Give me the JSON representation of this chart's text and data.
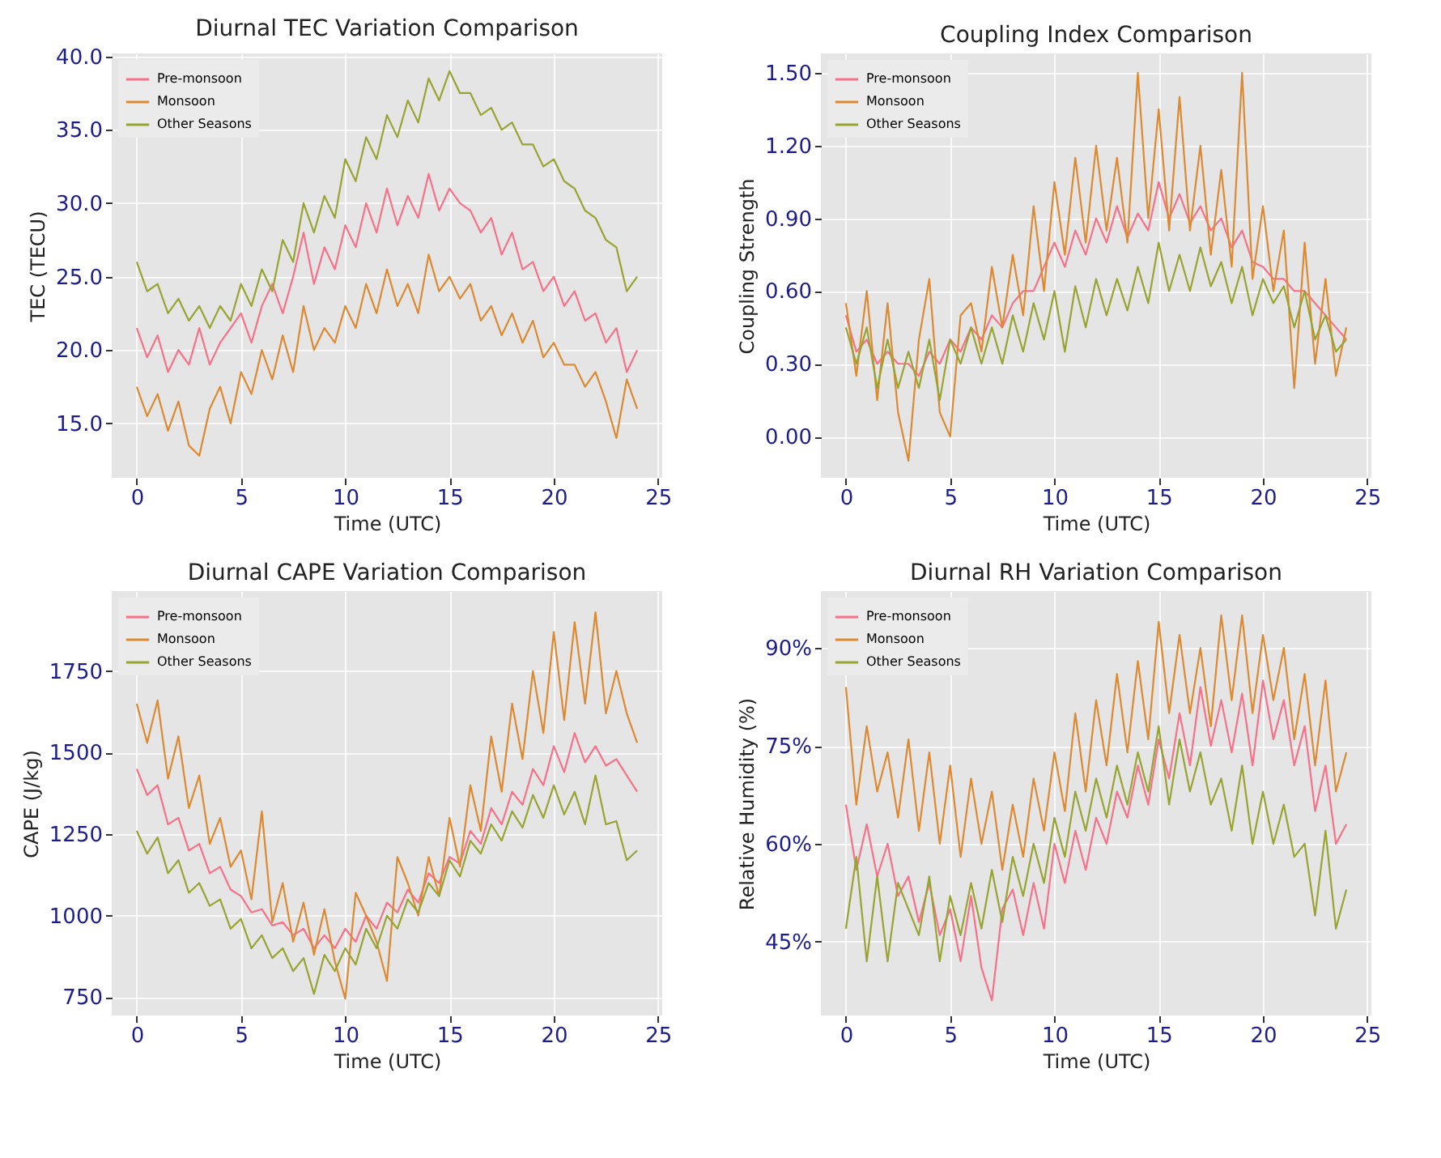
{
  "chart_data": [
    {
      "type": "line",
      "title": "Diurnal TEC Variation Comparison",
      "xlabel": "Time (UTC)",
      "ylabel": "TEC (TECU)",
      "xlim": [
        -1.2,
        25.2
      ],
      "xticks": [
        0,
        5,
        10,
        15,
        20,
        25
      ],
      "ylim": [
        11.3,
        40.2
      ],
      "yticks": [
        {
          "value": 15,
          "label": "15.0"
        },
        {
          "value": 20,
          "label": "20.0"
        },
        {
          "value": 25,
          "label": "25.0"
        },
        {
          "value": 30,
          "label": "30.0"
        },
        {
          "value": 35,
          "label": "35.0"
        },
        {
          "value": 40,
          "label": "40.0"
        }
      ],
      "grid": true,
      "legend": "top left",
      "x": [
        0,
        0.5,
        1,
        1.5,
        2,
        2.5,
        3,
        3.5,
        4,
        4.5,
        5,
        5.5,
        6,
        6.5,
        7,
        7.5,
        8,
        8.5,
        9,
        9.5,
        10,
        10.5,
        11,
        11.5,
        12,
        12.5,
        13,
        13.5,
        14,
        14.5,
        15,
        15.5,
        16,
        16.5,
        17,
        17.5,
        18,
        18.5,
        19,
        19.5,
        20,
        20.5,
        21,
        21.5,
        22,
        22.5,
        23,
        23.5,
        24
      ],
      "series": [
        {
          "name": "Pre-monsoon",
          "color": "#f77189",
          "values": [
            21.5,
            19.5,
            21,
            18.5,
            20,
            19,
            21.5,
            19,
            20.5,
            21.5,
            22.5,
            20.5,
            23,
            24.5,
            22.5,
            25,
            28,
            24.5,
            27,
            25.5,
            28.5,
            27,
            30,
            28,
            31,
            28.5,
            30.5,
            29,
            32,
            29.5,
            31,
            30,
            29.5,
            28,
            29,
            26.5,
            28,
            25.5,
            26,
            24,
            25,
            23,
            24,
            22,
            22.5,
            20.5,
            21.5,
            18.5,
            20
          ]
        },
        {
          "name": "Monsoon",
          "color": "#dc8932",
          "values": [
            17.5,
            15.5,
            17,
            14.5,
            16.5,
            13.5,
            12.8,
            16,
            17.5,
            15,
            18.5,
            17,
            20,
            18,
            21,
            18.5,
            23,
            20,
            21.5,
            20.5,
            23,
            21.5,
            24.5,
            22.5,
            25.5,
            23,
            24.5,
            22.5,
            26.5,
            24,
            25,
            23.5,
            24.5,
            22,
            23,
            21,
            22.5,
            20.5,
            22,
            19.5,
            20.5,
            19,
            19,
            17.5,
            18.5,
            16.5,
            14,
            18,
            16
          ]
        },
        {
          "name": "Other Seasons",
          "color": "#97a431",
          "values": [
            26,
            24,
            24.5,
            22.5,
            23.5,
            22,
            23,
            21.5,
            23,
            22,
            24.5,
            23,
            25.5,
            24,
            27.5,
            26,
            30,
            28,
            30.5,
            29,
            33,
            31.5,
            34.5,
            33,
            36,
            34.5,
            37,
            35.5,
            38.5,
            37,
            39,
            37.5,
            37.5,
            36,
            36.5,
            35,
            35.5,
            34,
            34,
            32.5,
            33,
            31.5,
            31,
            29.5,
            29,
            27.5,
            27,
            24,
            25
          ]
        }
      ]
    },
    {
      "type": "line",
      "title": "Coupling Index Comparison",
      "xlabel": "Time (UTC)",
      "ylabel": "Coupling Strength",
      "xlim": [
        -1.2,
        25.2
      ],
      "xticks": [
        0,
        5,
        10,
        15,
        20,
        25
      ],
      "ylim": [
        -0.17,
        1.58
      ],
      "yticks": [
        {
          "value": 0,
          "label": "0.00"
        },
        {
          "value": 0.3,
          "label": "0.30"
        },
        {
          "value": 0.6,
          "label": "0.60"
        },
        {
          "value": 0.9,
          "label": "0.90"
        },
        {
          "value": 1.2,
          "label": "1.20"
        },
        {
          "value": 1.5,
          "label": "1.50"
        }
      ],
      "grid": true,
      "legend": "top left",
      "x": [
        0,
        0.5,
        1,
        1.5,
        2,
        2.5,
        3,
        3.5,
        4,
        4.5,
        5,
        5.5,
        6,
        6.5,
        7,
        7.5,
        8,
        8.5,
        9,
        9.5,
        10,
        10.5,
        11,
        11.5,
        12,
        12.5,
        13,
        13.5,
        14,
        14.5,
        15,
        15.5,
        16,
        16.5,
        17,
        17.5,
        18,
        18.5,
        19,
        19.5,
        20,
        20.5,
        21,
        21.5,
        22,
        22.5,
        23,
        23.5,
        24
      ],
      "series": [
        {
          "name": "Pre-monsoon",
          "color": "#f77189",
          "values": [
            0.5,
            0.35,
            0.4,
            0.3,
            0.35,
            0.3,
            0.3,
            0.25,
            0.35,
            0.3,
            0.4,
            0.35,
            0.45,
            0.4,
            0.5,
            0.45,
            0.55,
            0.6,
            0.6,
            0.7,
            0.8,
            0.7,
            0.85,
            0.75,
            0.9,
            0.8,
            0.95,
            0.82,
            0.92,
            0.85,
            1.05,
            0.9,
            1.0,
            0.88,
            0.95,
            0.85,
            0.9,
            0.78,
            0.85,
            0.72,
            0.7,
            0.65,
            0.65,
            0.6,
            0.6,
            0.55,
            0.5,
            0.45,
            0.4
          ]
        },
        {
          "name": "Monsoon",
          "color": "#dc8932",
          "values": [
            0.55,
            0.25,
            0.6,
            0.15,
            0.55,
            0.1,
            -0.1,
            0.4,
            0.65,
            0.1,
            0.0,
            0.5,
            0.55,
            0.35,
            0.7,
            0.45,
            0.75,
            0.5,
            0.95,
            0.6,
            1.05,
            0.75,
            1.15,
            0.8,
            1.2,
            0.85,
            1.15,
            0.8,
            1.5,
            0.9,
            1.35,
            0.85,
            1.4,
            0.85,
            1.2,
            0.75,
            1.1,
            0.7,
            1.5,
            0.65,
            0.95,
            0.6,
            0.85,
            0.2,
            0.8,
            0.3,
            0.65,
            0.25,
            0.45
          ]
        },
        {
          "name": "Other Seasons",
          "color": "#97a431",
          "values": [
            0.45,
            0.3,
            0.45,
            0.2,
            0.4,
            0.2,
            0.35,
            0.2,
            0.4,
            0.15,
            0.4,
            0.3,
            0.45,
            0.3,
            0.45,
            0.3,
            0.5,
            0.35,
            0.55,
            0.4,
            0.6,
            0.35,
            0.62,
            0.45,
            0.65,
            0.5,
            0.65,
            0.52,
            0.7,
            0.55,
            0.8,
            0.6,
            0.75,
            0.6,
            0.78,
            0.62,
            0.72,
            0.55,
            0.7,
            0.5,
            0.65,
            0.55,
            0.62,
            0.45,
            0.6,
            0.4,
            0.5,
            0.35,
            0.4
          ]
        }
      ]
    },
    {
      "type": "line",
      "title": "Diurnal CAPE Variation Comparison",
      "xlabel": "Time (UTC)",
      "ylabel": "CAPE (J/kg)",
      "xlim": [
        -1.2,
        25.2
      ],
      "xticks": [
        0,
        5,
        10,
        15,
        20,
        25
      ],
      "ylim": [
        694,
        1995
      ],
      "yticks": [
        750,
        1000,
        1250,
        1500,
        1750
      ],
      "grid": true,
      "legend": "top left",
      "x": [
        0,
        0.5,
        1,
        1.5,
        2,
        2.5,
        3,
        3.5,
        4,
        4.5,
        5,
        5.5,
        6,
        6.5,
        7,
        7.5,
        8,
        8.5,
        9,
        9.5,
        10,
        10.5,
        11,
        11.5,
        12,
        12.5,
        13,
        13.5,
        14,
        14.5,
        15,
        15.5,
        16,
        16.5,
        17,
        17.5,
        18,
        18.5,
        19,
        19.5,
        20,
        20.5,
        21,
        21.5,
        22,
        22.5,
        23,
        23.5,
        24
      ],
      "series": [
        {
          "name": "Pre-monsoon",
          "color": "#f77189",
          "values": [
            1450,
            1370,
            1400,
            1280,
            1300,
            1200,
            1220,
            1130,
            1150,
            1080,
            1060,
            1010,
            1020,
            970,
            980,
            940,
            960,
            900,
            940,
            900,
            960,
            920,
            1000,
            960,
            1040,
            1010,
            1080,
            1040,
            1130,
            1100,
            1180,
            1160,
            1260,
            1220,
            1330,
            1280,
            1380,
            1340,
            1450,
            1400,
            1520,
            1440,
            1560,
            1470,
            1520,
            1460,
            1480,
            1430,
            1380
          ]
        },
        {
          "name": "Monsoon",
          "color": "#dc8932",
          "values": [
            1650,
            1530,
            1660,
            1420,
            1550,
            1330,
            1430,
            1220,
            1300,
            1150,
            1200,
            1050,
            1320,
            980,
            1100,
            920,
            1040,
            880,
            1020,
            860,
            745,
            1070,
            1000,
            920,
            800,
            1180,
            1100,
            1000,
            1180,
            1060,
            1300,
            1150,
            1400,
            1260,
            1550,
            1380,
            1650,
            1480,
            1750,
            1560,
            1870,
            1600,
            1900,
            1650,
            1930,
            1620,
            1750,
            1620,
            1530
          ]
        },
        {
          "name": "Other Seasons",
          "color": "#97a431",
          "values": [
            1260,
            1190,
            1240,
            1130,
            1170,
            1070,
            1100,
            1030,
            1050,
            960,
            990,
            900,
            940,
            870,
            900,
            830,
            870,
            760,
            880,
            830,
            900,
            850,
            960,
            900,
            1000,
            960,
            1050,
            1010,
            1100,
            1060,
            1170,
            1120,
            1230,
            1190,
            1280,
            1230,
            1320,
            1270,
            1370,
            1300,
            1400,
            1310,
            1380,
            1280,
            1430,
            1280,
            1290,
            1170,
            1200
          ]
        }
      ]
    },
    {
      "type": "line",
      "title": "Diurnal RH Variation Comparison",
      "xlabel": "Time (UTC)",
      "ylabel": "Relative Humidity (%)",
      "xlim": [
        -1.2,
        25.2
      ],
      "xticks": [
        0,
        5,
        10,
        15,
        20,
        25
      ],
      "ylim": [
        33.7,
        98.7
      ],
      "yticks": [
        {
          "value": 45,
          "label": "45%"
        },
        {
          "value": 60,
          "label": "60%"
        },
        {
          "value": 75,
          "label": "75%"
        },
        {
          "value": 90,
          "label": "90%"
        }
      ],
      "grid": true,
      "legend": "top left",
      "x": [
        0,
        0.5,
        1,
        1.5,
        2,
        2.5,
        3,
        3.5,
        4,
        4.5,
        5,
        5.5,
        6,
        6.5,
        7,
        7.5,
        8,
        8.5,
        9,
        9.5,
        10,
        10.5,
        11,
        11.5,
        12,
        12.5,
        13,
        13.5,
        14,
        14.5,
        15,
        15.5,
        16,
        16.5,
        17,
        17.5,
        18,
        18.5,
        19,
        19.5,
        20,
        20.5,
        21,
        21.5,
        22,
        22.5,
        23,
        23.5,
        24
      ],
      "series": [
        {
          "name": "Pre-monsoon",
          "color": "#f77189",
          "values": [
            66,
            56,
            63,
            55,
            60,
            52,
            55,
            48,
            54,
            46,
            50,
            42,
            52,
            41,
            36,
            50,
            53,
            46,
            54,
            47,
            60,
            54,
            62,
            56,
            64,
            60,
            68,
            64,
            72,
            66,
            76,
            70,
            80,
            72,
            84,
            75,
            82,
            74,
            83,
            72,
            85,
            76,
            82,
            72,
            78,
            65,
            72,
            60,
            63
          ]
        },
        {
          "name": "Monsoon",
          "color": "#dc8932",
          "values": [
            84,
            66,
            78,
            68,
            74,
            64,
            76,
            62,
            74,
            60,
            72,
            58,
            70,
            60,
            68,
            56,
            66,
            58,
            70,
            62,
            74,
            65,
            80,
            68,
            82,
            72,
            86,
            74,
            88,
            76,
            94,
            80,
            92,
            80,
            90,
            78,
            95,
            82,
            95,
            80,
            92,
            82,
            90,
            76,
            86,
            72,
            85,
            68,
            74
          ]
        },
        {
          "name": "Other Seasons",
          "color": "#97a431",
          "values": [
            47,
            58,
            42,
            55,
            42,
            54,
            50,
            46,
            55,
            42,
            52,
            46,
            54,
            47,
            56,
            48,
            58,
            52,
            60,
            54,
            64,
            58,
            68,
            62,
            70,
            64,
            72,
            66,
            74,
            68,
            78,
            66,
            76,
            68,
            74,
            66,
            70,
            62,
            72,
            60,
            68,
            60,
            66,
            58,
            60,
            49,
            62,
            47,
            53
          ]
        }
      ]
    }
  ]
}
